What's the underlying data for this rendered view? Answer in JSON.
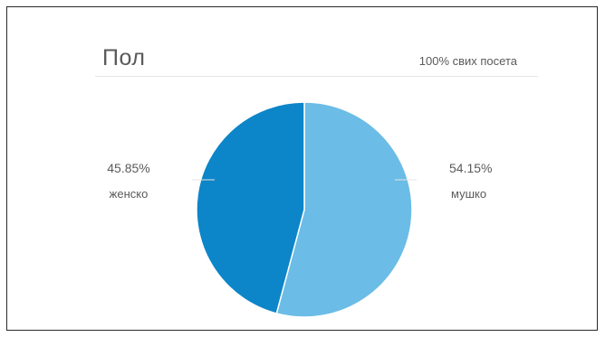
{
  "card": {
    "title": "Пол",
    "subtitle": "100% свих посета"
  },
  "chart_data": {
    "type": "pie",
    "title": "Пол",
    "subtitle": "100% свих посета",
    "slices": [
      {
        "label": "мушко",
        "value": 54.15,
        "value_label": "54.15%",
        "color": "#6bbce6"
      },
      {
        "label": "женско",
        "value": 45.85,
        "value_label": "45.85%",
        "color": "#0d85c9"
      }
    ],
    "start": "12 o'clock",
    "direction": "clockwise",
    "legend": "none"
  }
}
